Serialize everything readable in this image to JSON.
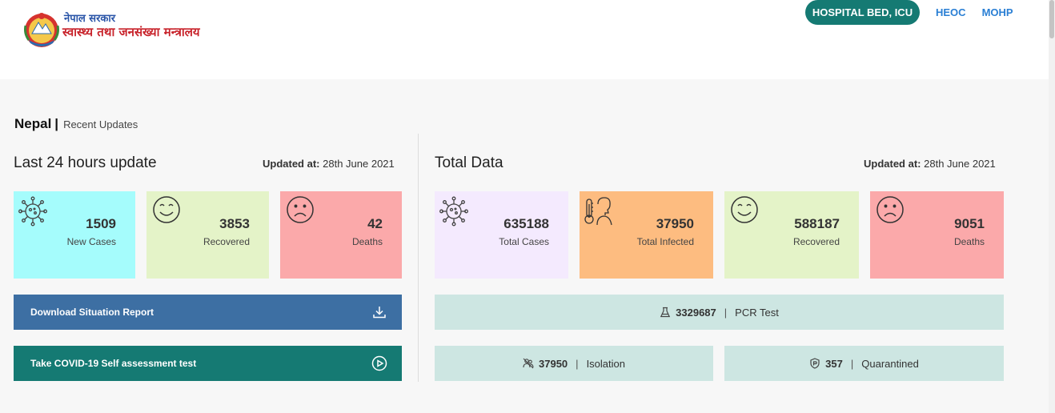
{
  "header": {
    "logo_line1": "नेपाल सरकार",
    "logo_line2": "स्वास्थ्य तथा जनसंख्या मन्त्रालय",
    "nav_pill": "HOSPITAL BED, ICU",
    "nav_links": [
      "HEOC",
      "MOHP"
    ]
  },
  "breadcrumb": {
    "country": "Nepal",
    "separator": "|",
    "subtitle": "Recent Updates"
  },
  "last24": {
    "title": "Last 24 hours update",
    "updated_label": "Updated at:",
    "updated_value": "28th June 2021",
    "cards": [
      {
        "value": "1509",
        "label": "New Cases",
        "color": "#a5fcfc",
        "icon": "virus-icon"
      },
      {
        "value": "3853",
        "label": "Recovered",
        "color": "#e4f3c8",
        "icon": "smile-icon"
      },
      {
        "value": "42",
        "label": "Deaths",
        "color": "#fba9aa",
        "icon": "sad-icon"
      }
    ],
    "download_button": "Download Situation Report",
    "assessment_button": "Take COVID-19 Self assessment test"
  },
  "total": {
    "title": "Total Data",
    "updated_label": "Updated at:",
    "updated_value": "28th June 2021",
    "cards": [
      {
        "value": "635188",
        "label": "Total Cases",
        "color": "#f4eafe",
        "icon": "virus-icon"
      },
      {
        "value": "37950",
        "label": "Total Infected",
        "color": "#fdbc80",
        "icon": "thermometer-icon"
      },
      {
        "value": "588187",
        "label": "Recovered",
        "color": "#e4f3c8",
        "icon": "smile-icon"
      },
      {
        "value": "9051",
        "label": "Deaths",
        "color": "#fba9aa",
        "icon": "sad-icon"
      }
    ],
    "pcr": {
      "value": "3329687",
      "sep": "|",
      "label": "PCR Test"
    },
    "isolation": {
      "value": "37950",
      "sep": "|",
      "label": "Isolation"
    },
    "quarantined": {
      "value": "357",
      "sep": "|",
      "label": "Quarantined"
    }
  },
  "colors": {
    "primary_teal": "#157a73",
    "download_blue": "#3d6fa3",
    "stat_bg": "#cde6e2",
    "link_blue": "#2a7fd4"
  }
}
